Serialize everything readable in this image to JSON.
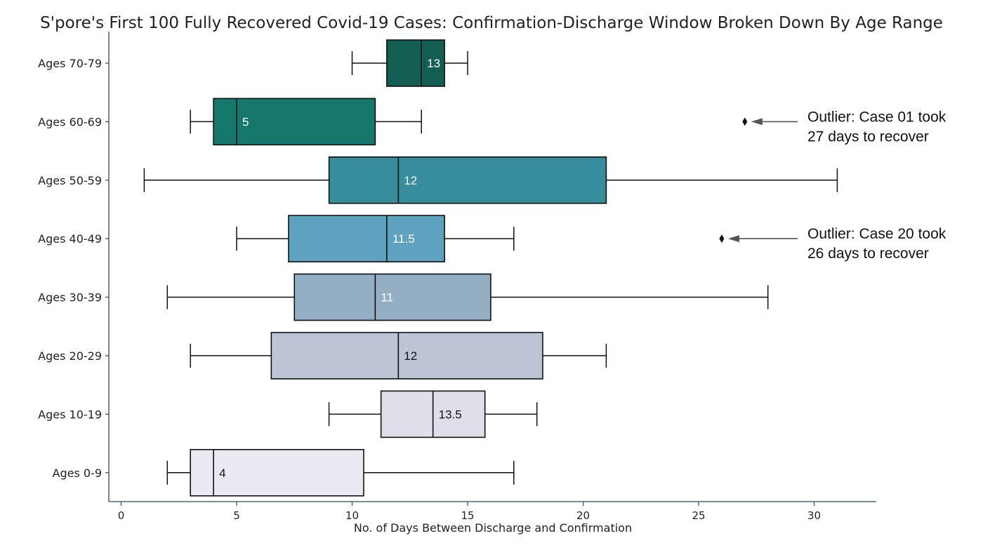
{
  "chart_data": {
    "type": "boxplot",
    "orientation": "horizontal",
    "title": "S'pore's First 100 Fully Recovered Covid-19 Cases: Confirmation-Discharge Window Broken Down By Age Range",
    "xlabel": "No. of Days Between Discharge and Confirmation",
    "ylabel": "",
    "xlim": [
      -0.5,
      32.7
    ],
    "xticks": [
      0,
      5,
      10,
      15,
      20,
      25,
      30
    ],
    "grid": false,
    "categories": [
      {
        "label": "Ages 70-79",
        "min": 10,
        "q1": 11.5,
        "median": 13,
        "q3": 14,
        "max": 15,
        "median_label": "13",
        "color": "#145d52",
        "label_color": "#ffffff",
        "outliers": []
      },
      {
        "label": "Ages 60-69",
        "min": 3,
        "q1": 4,
        "median": 5,
        "q3": 11,
        "max": 13,
        "median_label": "5",
        "color": "#16786c",
        "label_color": "#ffffff",
        "outliers": [
          27
        ]
      },
      {
        "label": "Ages 50-59",
        "min": 1,
        "q1": 9,
        "median": 12,
        "q3": 21,
        "max": 31,
        "median_label": "12",
        "color": "#378d9c",
        "label_color": "#ffffff",
        "outliers": []
      },
      {
        "label": "Ages 40-49",
        "min": 5,
        "q1": 7.25,
        "median": 11.5,
        "q3": 14,
        "max": 17,
        "median_label": "11.5",
        "color": "#5ea2bf",
        "label_color": "#ffffff",
        "outliers": [
          26
        ]
      },
      {
        "label": "Ages 30-39",
        "min": 2,
        "q1": 7.5,
        "median": 11,
        "q3": 16,
        "max": 28,
        "median_label": "11",
        "color": "#94afc4",
        "label_color": "#ffffff",
        "outliers": []
      },
      {
        "label": "Ages 20-29",
        "min": 3,
        "q1": 6.5,
        "median": 12,
        "q3": 18.25,
        "max": 21,
        "median_label": "12",
        "color": "#bdc4d6",
        "label_color": "#111111",
        "outliers": []
      },
      {
        "label": "Ages 10-19",
        "min": 9,
        "q1": 11.25,
        "median": 13.5,
        "q3": 15.75,
        "max": 18,
        "median_label": "13.5",
        "color": "#dfdfe9",
        "label_color": "#111111",
        "outliers": []
      },
      {
        "label": "Ages 0-9",
        "min": 2,
        "q1": 3,
        "median": 4,
        "q3": 10.5,
        "max": 17,
        "median_label": "4",
        "color": "#ebe9f1",
        "label_color": "#111111",
        "outliers": []
      }
    ],
    "annotations": [
      {
        "category_index": 1,
        "point_x": 27,
        "lines": [
          "Outlier: Case 01 took",
          "27 days to recover"
        ]
      },
      {
        "category_index": 3,
        "point_x": 26,
        "lines": [
          "Outlier: Case 20 took",
          "26 days to recover"
        ]
      }
    ]
  },
  "colors": {
    "axis": "#2e4a5a",
    "whisker": "#111111",
    "arrow": "#555555"
  }
}
